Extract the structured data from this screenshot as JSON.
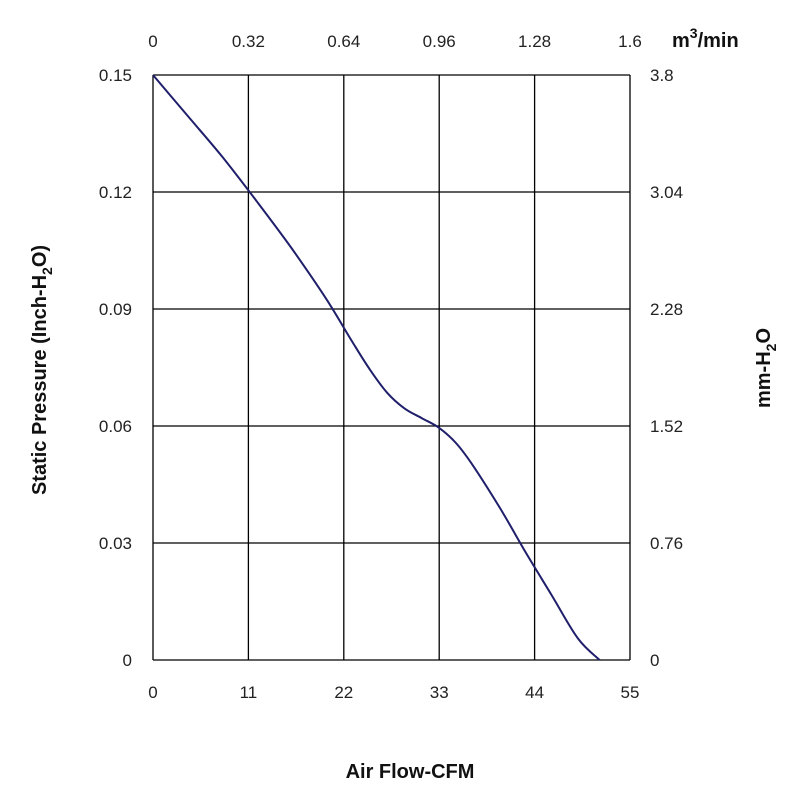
{
  "chart_data": {
    "type": "line",
    "xlabel": "Air Flow-CFM",
    "ylabel_parts": [
      "Static Pressure (Inch-H",
      "2",
      "O)"
    ],
    "ylabel_right_parts": [
      "mm-H",
      "2",
      "O"
    ],
    "xlabel_top_parts": [
      "m",
      "3",
      "/min"
    ],
    "xlim": [
      0,
      55
    ],
    "ylim": [
      0,
      0.15
    ],
    "x_ticks": [
      "0",
      "11",
      "22",
      "33",
      "44",
      "55"
    ],
    "x_top_ticks": [
      "0",
      "0.32",
      "0.64",
      "0.96",
      "1.28",
      "1.6"
    ],
    "y_ticks": [
      "0",
      "0.03",
      "0.06",
      "0.09",
      "0.12",
      "0.15"
    ],
    "y_right_ticks": [
      "0",
      "0.76",
      "1.52",
      "2.28",
      "3.04",
      "3.8"
    ],
    "grid": true,
    "series": [
      {
        "color": "#1f1f6b",
        "x": [
          0,
          4,
          8,
          12,
          16,
          20,
          23,
          25,
          27,
          29,
          31,
          33,
          35,
          37,
          40,
          43,
          46,
          49,
          51.5
        ],
        "y": [
          0.15,
          0.1395,
          0.129,
          0.1175,
          0.1055,
          0.0925,
          0.0815,
          0.0745,
          0.0685,
          0.0645,
          0.062,
          0.0595,
          0.0555,
          0.0495,
          0.039,
          0.0275,
          0.0165,
          0.0055,
          0.0
        ]
      }
    ]
  }
}
